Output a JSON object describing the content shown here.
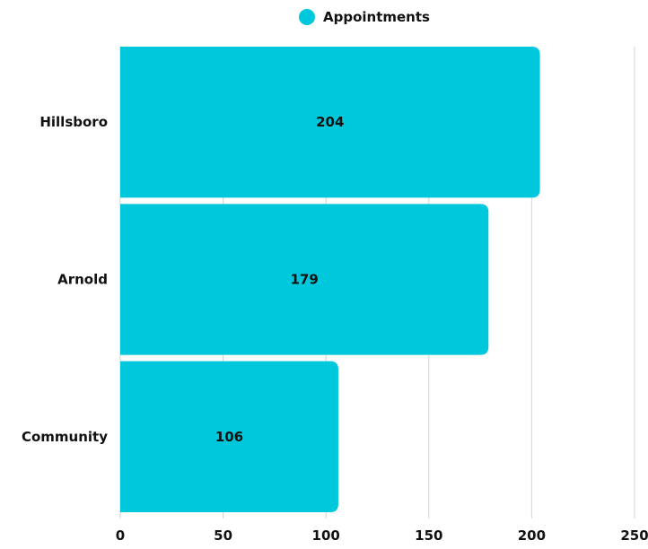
{
  "colors": {
    "bar": "#00c8dc",
    "grid": "#d3d3d3",
    "text": "#111111"
  },
  "legend": {
    "label": "Appointments",
    "position": "top-center"
  },
  "chart_data": {
    "type": "bar",
    "orientation": "horizontal",
    "categories": [
      "Hillsboro",
      "Arnold",
      "Community"
    ],
    "series": [
      {
        "name": "Appointments",
        "values": [
          204,
          179,
          106
        ]
      }
    ],
    "xlim": [
      0,
      250
    ],
    "xticks": [
      0,
      50,
      100,
      150,
      200,
      250
    ],
    "title": "",
    "xlabel": "",
    "ylabel": "",
    "grid": "vertical",
    "data_labels": true
  }
}
